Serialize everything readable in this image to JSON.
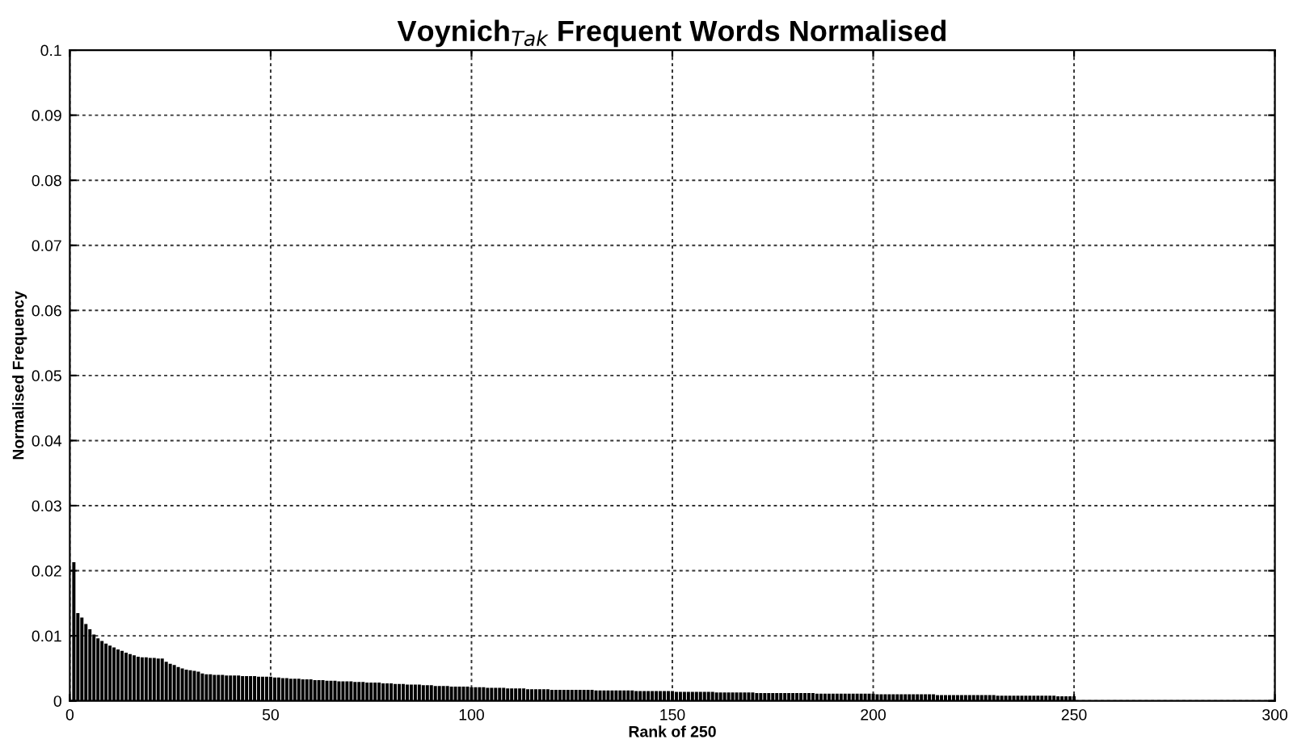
{
  "chart_data": {
    "type": "bar",
    "title": "Voynich$_{Tak}$ Frequent Words Normalised",
    "xlabel": "Rank of 250",
    "ylabel": "Normalised Frequency",
    "x": [
      1,
      2,
      3,
      4,
      5,
      6,
      7,
      8,
      9,
      10,
      11,
      12,
      13,
      14,
      15,
      16,
      17,
      18,
      19,
      20,
      21,
      22,
      23,
      24,
      25,
      26,
      27,
      28,
      29,
      30,
      31,
      32,
      33,
      34,
      35,
      36,
      37,
      38,
      39,
      40,
      41,
      42,
      43,
      44,
      45,
      46,
      47,
      48,
      49,
      50,
      51,
      52,
      53,
      54,
      55,
      56,
      57,
      58,
      59,
      60,
      61,
      62,
      63,
      64,
      65,
      66,
      67,
      68,
      69,
      70,
      71,
      72,
      73,
      74,
      75,
      76,
      77,
      78,
      79,
      80,
      81,
      82,
      83,
      84,
      85,
      86,
      87,
      88,
      89,
      90,
      91,
      92,
      93,
      94,
      95,
      96,
      97,
      98,
      99,
      100,
      101,
      102,
      103,
      104,
      105,
      106,
      107,
      108,
      109,
      110,
      111,
      112,
      113,
      114,
      115,
      116,
      117,
      118,
      119,
      120,
      121,
      122,
      123,
      124,
      125,
      126,
      127,
      128,
      129,
      130,
      131,
      132,
      133,
      134,
      135,
      136,
      137,
      138,
      139,
      140,
      141,
      142,
      143,
      144,
      145,
      146,
      147,
      148,
      149,
      150,
      151,
      152,
      153,
      154,
      155,
      156,
      157,
      158,
      159,
      160,
      161,
      162,
      163,
      164,
      165,
      166,
      167,
      168,
      169,
      170,
      171,
      172,
      173,
      174,
      175,
      176,
      177,
      178,
      179,
      180,
      181,
      182,
      183,
      184,
      185,
      186,
      187,
      188,
      189,
      190,
      191,
      192,
      193,
      194,
      195,
      196,
      197,
      198,
      199,
      200,
      201,
      202,
      203,
      204,
      205,
      206,
      207,
      208,
      209,
      210,
      211,
      212,
      213,
      214,
      215,
      216,
      217,
      218,
      219,
      220,
      221,
      222,
      223,
      224,
      225,
      226,
      227,
      228,
      229,
      230,
      231,
      232,
      233,
      234,
      235,
      236,
      237,
      238,
      239,
      240,
      241,
      242,
      243,
      244,
      245,
      246,
      247,
      248,
      249,
      250
    ],
    "values": [
      0.0213,
      0.0135,
      0.0128,
      0.0118,
      0.011,
      0.0102,
      0.0096,
      0.0092,
      0.0088,
      0.0085,
      0.0082,
      0.0079,
      0.0077,
      0.0074,
      0.0072,
      0.007,
      0.0068,
      0.0067,
      0.0067,
      0.0066,
      0.0066,
      0.0065,
      0.0065,
      0.006,
      0.0057,
      0.0055,
      0.0052,
      0.005,
      0.0048,
      0.0047,
      0.0046,
      0.0045,
      0.0042,
      0.0041,
      0.0041,
      0.004,
      0.004,
      0.004,
      0.0039,
      0.0039,
      0.0039,
      0.0039,
      0.0038,
      0.0038,
      0.0038,
      0.0038,
      0.0037,
      0.0037,
      0.0037,
      0.0037,
      0.0036,
      0.0036,
      0.0035,
      0.0035,
      0.0034,
      0.0034,
      0.0034,
      0.0033,
      0.0033,
      0.0033,
      0.0032,
      0.0032,
      0.0032,
      0.0031,
      0.0031,
      0.0031,
      0.003,
      0.003,
      0.003,
      0.003,
      0.0029,
      0.0029,
      0.0029,
      0.0028,
      0.0028,
      0.0028,
      0.0028,
      0.0027,
      0.0027,
      0.0027,
      0.0026,
      0.0026,
      0.0026,
      0.0025,
      0.0025,
      0.0025,
      0.0025,
      0.0024,
      0.0024,
      0.0024,
      0.0023,
      0.0023,
      0.0023,
      0.0023,
      0.0022,
      0.0022,
      0.0022,
      0.0022,
      0.0022,
      0.0021,
      0.0021,
      0.0021,
      0.0021,
      0.002,
      0.002,
      0.002,
      0.002,
      0.002,
      0.0019,
      0.0019,
      0.0019,
      0.0019,
      0.0019,
      0.0018,
      0.0018,
      0.0018,
      0.0018,
      0.0018,
      0.0018,
      0.0017,
      0.0017,
      0.0017,
      0.0017,
      0.0017,
      0.0017,
      0.0017,
      0.0017,
      0.0017,
      0.0017,
      0.0017,
      0.0016,
      0.0016,
      0.0016,
      0.0016,
      0.0016,
      0.0016,
      0.0016,
      0.0016,
      0.0016,
      0.0016,
      0.0015,
      0.0015,
      0.0015,
      0.0015,
      0.0015,
      0.0015,
      0.0015,
      0.0015,
      0.0015,
      0.0015,
      0.0014,
      0.0014,
      0.0014,
      0.0014,
      0.0014,
      0.0014,
      0.0014,
      0.0014,
      0.0014,
      0.0014,
      0.0013,
      0.0013,
      0.0013,
      0.0013,
      0.0013,
      0.0013,
      0.0013,
      0.0013,
      0.0013,
      0.0013,
      0.0012,
      0.0012,
      0.0012,
      0.0012,
      0.0012,
      0.0012,
      0.0012,
      0.0012,
      0.0012,
      0.0012,
      0.0012,
      0.0012,
      0.0012,
      0.0012,
      0.0012,
      0.0011,
      0.0011,
      0.0011,
      0.0011,
      0.0011,
      0.0011,
      0.0011,
      0.0011,
      0.0011,
      0.0011,
      0.0011,
      0.0011,
      0.0011,
      0.0011,
      0.0011,
      0.001,
      0.001,
      0.001,
      0.001,
      0.001,
      0.001,
      0.001,
      0.001,
      0.001,
      0.001,
      0.001,
      0.001,
      0.001,
      0.001,
      0.001,
      0.0009,
      0.0009,
      0.0009,
      0.0009,
      0.0009,
      0.0009,
      0.0009,
      0.0009,
      0.0009,
      0.0009,
      0.0009,
      0.0009,
      0.0009,
      0.0009,
      0.0009,
      0.0008,
      0.0008,
      0.0008,
      0.0008,
      0.0008,
      0.0008,
      0.0008,
      0.0008,
      0.0008,
      0.0008,
      0.0008,
      0.0008,
      0.0008,
      0.0008,
      0.0008,
      0.0007,
      0.0007,
      0.0007,
      0.0007,
      0.0007
    ],
    "color": "#000000",
    "xlim": [
      0,
      300
    ],
    "xticks": [
      0,
      50,
      100,
      150,
      200,
      250,
      300
    ],
    "ylim": [
      0,
      0.1
    ],
    "yticks": [
      0,
      0.01,
      0.02,
      0.03,
      0.04,
      0.05,
      0.06,
      0.07,
      0.08,
      0.09,
      0.1
    ],
    "grid": true
  }
}
